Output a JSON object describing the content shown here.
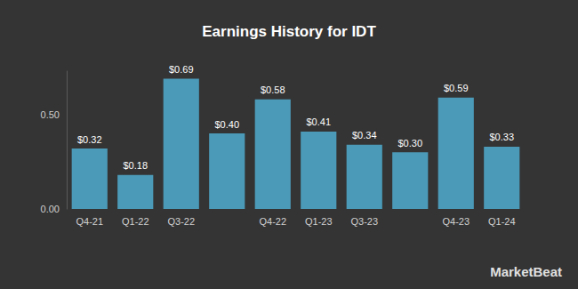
{
  "chart_data": {
    "type": "bar",
    "title": "Earnings History for IDT",
    "categories": [
      "Q4-21",
      "Q1-22",
      "Q3-22",
      null,
      "Q4-22",
      "Q1-23",
      "Q3-23",
      null,
      "Q4-23",
      "Q1-24"
    ],
    "values": [
      0.32,
      0.18,
      0.69,
      0.4,
      0.58,
      0.41,
      0.34,
      0.3,
      0.59,
      0.33
    ],
    "value_labels": [
      "$0.32",
      "$0.18",
      "$0.69",
      "$0.40",
      "$0.58",
      "$0.41",
      "$0.34",
      "$0.30",
      "$0.59",
      "$0.33"
    ],
    "color": "#4b9ab8",
    "ylim": [
      0,
      0.73
    ],
    "yticks": [
      {
        "value": 0,
        "label": "0.00"
      },
      {
        "value": 0.5,
        "label": "0.50"
      }
    ],
    "grid": false,
    "data_labels": true,
    "annotations": [
      "MarketBeat"
    ]
  }
}
